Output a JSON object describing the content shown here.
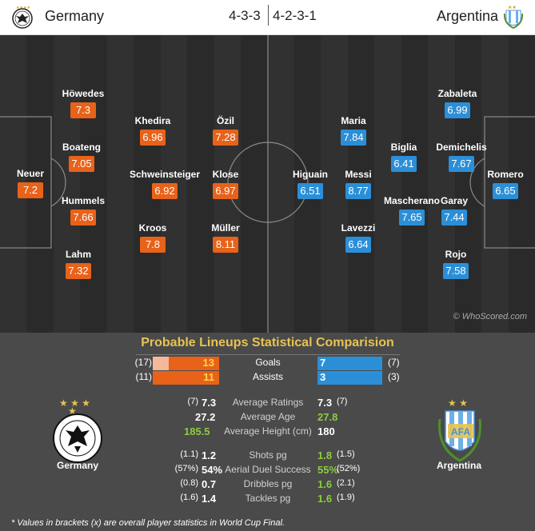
{
  "header": {
    "home_team": "Germany",
    "away_team": "Argentina",
    "home_formation": "4-3-3",
    "away_formation": "4-2-3-1",
    "home_crest_icon": "dfb-eagle-crest-icon",
    "away_crest_icon": "afa-crest-icon"
  },
  "colors": {
    "home_accent": "#e8621a",
    "away_accent": "#2b8fd8",
    "title_gold": "#e6c452",
    "green_highlight": "#8ccd3d"
  },
  "pitch": {
    "watermark": "© WhoScored.com",
    "home_players": [
      {
        "name": "Neuer",
        "rating": "7.2"
      },
      {
        "name": "Höwedes",
        "rating": "7.3"
      },
      {
        "name": "Boateng",
        "rating": "7.05"
      },
      {
        "name": "Hummels",
        "rating": "7.66"
      },
      {
        "name": "Lahm",
        "rating": "7.32"
      },
      {
        "name": "Khedira",
        "rating": "6.96"
      },
      {
        "name": "Schweinsteiger",
        "rating": "6.92"
      },
      {
        "name": "Kroos",
        "rating": "7.8"
      },
      {
        "name": "Özil",
        "rating": "7.28"
      },
      {
        "name": "Klose",
        "rating": "6.97"
      },
      {
        "name": "Müller",
        "rating": "8.11"
      }
    ],
    "away_players": [
      {
        "name": "Higuain",
        "rating": "6.51"
      },
      {
        "name": "Maria",
        "rating": "7.84"
      },
      {
        "name": "Messi",
        "rating": "8.77"
      },
      {
        "name": "Lavezzi",
        "rating": "6.64"
      },
      {
        "name": "Biglia",
        "rating": "6.41"
      },
      {
        "name": "Mascherano",
        "rating": "7.65"
      },
      {
        "name": "Zabaleta",
        "rating": "6.99"
      },
      {
        "name": "Demichelis",
        "rating": "7.67"
      },
      {
        "name": "Garay",
        "rating": "7.44"
      },
      {
        "name": "Rojo",
        "rating": "7.58"
      },
      {
        "name": "Romero",
        "rating": "6.65"
      }
    ]
  },
  "stats": {
    "title": "Probable Lineups Statistical Comparision",
    "bars": [
      {
        "label": "Goals",
        "home_value": "13",
        "home_bracket": "(17)",
        "away_value": "7",
        "away_bracket": "(7)",
        "home_share": 0.24,
        "away_share": 1.0
      },
      {
        "label": "Assists",
        "home_value": "11",
        "home_bracket": "(11)",
        "away_value": "3",
        "away_bracket": "(3)",
        "home_share": 0.0,
        "away_share": 1.0
      }
    ],
    "rows_a": [
      {
        "label": "Average Ratings",
        "home_bracket": "(7)",
        "home_value": "7.3",
        "away_value": "7.3",
        "away_bracket": "(7)",
        "home_green": false,
        "away_green": false
      },
      {
        "label": "Average Age",
        "home_bracket": "",
        "home_value": "27.2",
        "away_value": "27.8",
        "away_bracket": "",
        "home_green": false,
        "away_green": true
      },
      {
        "label": "Average Height (cm)",
        "home_bracket": "",
        "home_value": "185.5",
        "away_value": "180",
        "away_bracket": "",
        "home_green": true,
        "away_green": false
      }
    ],
    "rows_b": [
      {
        "label": "Shots pg",
        "home_bracket": "(1.1)",
        "home_value": "1.2",
        "away_value": "1.8",
        "away_bracket": "(1.5)",
        "home_green": false,
        "away_green": true
      },
      {
        "label": "Aerial Duel Success",
        "home_bracket": "(57%)",
        "home_value": "54%",
        "away_value": "55%",
        "away_bracket": "(52%)",
        "home_green": false,
        "away_green": true
      },
      {
        "label": "Dribbles pg",
        "home_bracket": "(0.8)",
        "home_value": "0.7",
        "away_value": "1.6",
        "away_bracket": "(2.1)",
        "home_green": false,
        "away_green": true
      },
      {
        "label": "Tackles pg",
        "home_bracket": "(1.6)",
        "home_value": "1.4",
        "away_value": "1.6",
        "away_bracket": "(1.9)",
        "home_green": false,
        "away_green": true
      }
    ],
    "home_label": "Germany",
    "away_label": "Argentina",
    "footnote": "* Values in brackets (x) are overall player statistics in World Cup Final."
  }
}
